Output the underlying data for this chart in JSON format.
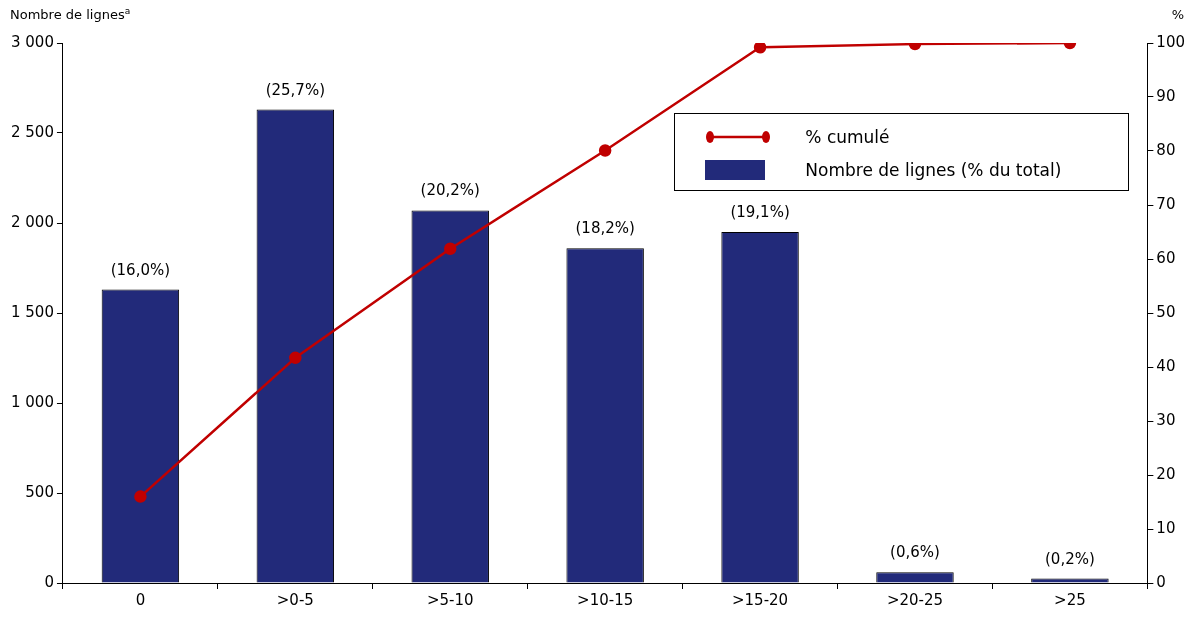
{
  "chart_data": {
    "type": "bar",
    "ylabel": "Nombre de lignes$^{a}$",
    "y2label": "%",
    "categories": [
      "0",
      ">0-5",
      ">5-10",
      ">10-15",
      ">15-20",
      ">20-25",
      ">25"
    ],
    "series": [
      {
        "name": "Nombre de lignes (% du total)",
        "color": "#222a7a",
        "values": [
          1630,
          2630,
          2070,
          1860,
          1950,
          60,
          25
        ]
      },
      {
        "name": "% cumulé",
        "type": "line",
        "axis": "y2",
        "color": "#c00000",
        "values": [
          16.0,
          41.7,
          61.9,
          80.1,
          99.2,
          99.8,
          100
        ]
      }
    ],
    "annotations": [
      {
        "text": "(16,0%)",
        "x": "0",
        "y": 1630
      },
      {
        "text": "(25,7%)",
        "x": ">0-5",
        "y": 2630
      },
      {
        "text": "(20,2%)",
        "x": ">5-10",
        "y": 2070
      },
      {
        "text": "(18,2%)",
        "x": ">10-15",
        "y": 1860
      },
      {
        "text": "(19,1%)",
        "x": ">15-20",
        "y": 1950
      },
      {
        "text": "(0,6%)",
        "x": ">20-25",
        "y": 60
      },
      {
        "text": "(0,2%)",
        "x": ">25",
        "y": 25
      }
    ],
    "ylim": [
      0,
      3000
    ],
    "yticks": [
      {
        "value": 0,
        "label": "0"
      },
      {
        "value": 500,
        "label": "500"
      },
      {
        "value": 1000,
        "label": "1 000"
      },
      {
        "value": 1500,
        "label": "1 500"
      },
      {
        "value": 2000,
        "label": "2 000"
      },
      {
        "value": 2500,
        "label": "2 500"
      },
      {
        "value": 3000,
        "label": "3 000"
      }
    ],
    "y2lim": [
      0,
      100
    ],
    "y2ticks": [
      0,
      10,
      20,
      30,
      40,
      50,
      60,
      70,
      80,
      90,
      100
    ],
    "grid": false,
    "legend": "top right",
    "marker": "circle",
    "line_style": "solid"
  }
}
